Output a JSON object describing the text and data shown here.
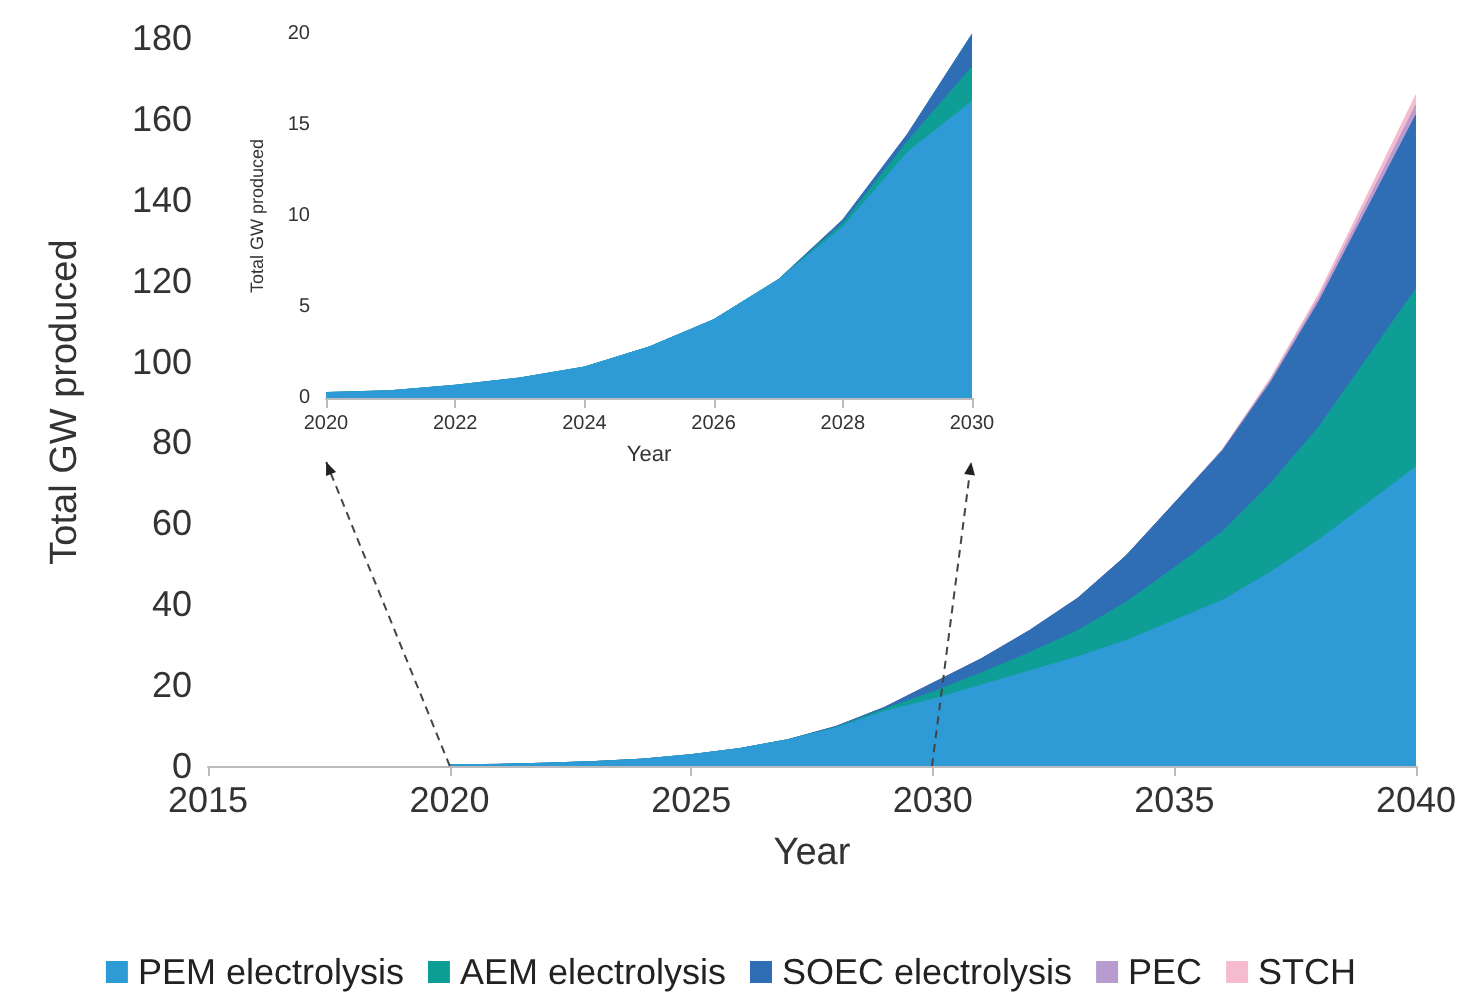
{
  "chart_data": [
    {
      "type": "area",
      "xlabel": "Year",
      "ylabel": "Total GW produced",
      "stacked": true,
      "marker": "none",
      "legend": "bottom",
      "x": [
        2020,
        2021,
        2022,
        2023,
        2024,
        2025,
        2026,
        2027,
        2028,
        2029,
        2030,
        2031,
        2032,
        2033,
        2034,
        2035,
        2036,
        2037,
        2038,
        2039,
        2040
      ],
      "xlim": [
        2015,
        2040
      ],
      "xticks": [
        2015,
        2020,
        2025,
        2030,
        2035,
        2040
      ],
      "ylim": [
        0,
        180
      ],
      "yticks": [
        0,
        20,
        40,
        60,
        80,
        100,
        120,
        140,
        160,
        180
      ],
      "series": [
        {
          "name": "PEM electrolysis",
          "color": "#2e9bd6",
          "values": [
            0.3,
            0.4,
            0.7,
            1.1,
            1.7,
            2.8,
            4.3,
            6.5,
            9.4,
            13.5,
            16.5,
            20,
            23.5,
            27,
            31,
            36,
            41,
            48,
            56,
            65,
            74
          ]
        },
        {
          "name": "AEM electrolysis",
          "color": "#0f9e96",
          "values": [
            0,
            0,
            0,
            0,
            0,
            0,
            0,
            0,
            0.2,
            0.6,
            1.8,
            3,
            4.5,
            6.5,
            9.5,
            13,
            17,
            22,
            28,
            36,
            44
          ]
        },
        {
          "name": "SOEC electrolysis",
          "color": "#2f6db5",
          "values": [
            0,
            0,
            0,
            0,
            0,
            0,
            0,
            0,
            0.2,
            0.4,
            2.2,
            3.5,
            5.5,
            8,
            11.5,
            16,
            20,
            25,
            31,
            37,
            43
          ]
        },
        {
          "name": "PEC",
          "color": "#b89ccf",
          "values": [
            0,
            0,
            0,
            0,
            0,
            0,
            0,
            0,
            0,
            0,
            0,
            0,
            0,
            0,
            0,
            0,
            0.3,
            0.6,
            1,
            1.7,
            2.5
          ]
        },
        {
          "name": "STCH",
          "color": "#f5bcd0",
          "values": [
            0,
            0,
            0,
            0,
            0,
            0,
            0,
            0,
            0,
            0,
            0,
            0,
            0,
            0,
            0,
            0,
            0,
            0.5,
            1,
            1.7,
            2.5
          ]
        }
      ]
    },
    {
      "type": "area",
      "xlabel": "Year",
      "ylabel": "Total GW produced",
      "stacked": true,
      "marker": "none",
      "x": [
        2020,
        2021,
        2022,
        2023,
        2024,
        2025,
        2026,
        2027,
        2028,
        2029,
        2030
      ],
      "xlim": [
        2020,
        2030
      ],
      "xticks": [
        2020,
        2022,
        2024,
        2026,
        2028,
        2030
      ],
      "ylim": [
        0,
        20
      ],
      "yticks": [
        0,
        5,
        10,
        15,
        20
      ],
      "series": [
        {
          "color": "#2e9bd6",
          "values": [
            0.3,
            0.4,
            0.7,
            1.1,
            1.7,
            2.8,
            4.3,
            6.5,
            9.4,
            13.5,
            16.3
          ]
        },
        {
          "color": "#0f9e96",
          "values": [
            0,
            0,
            0,
            0,
            0,
            0,
            0,
            0,
            0.2,
            0.6,
            1.9
          ]
        },
        {
          "color": "#2f6db5",
          "values": [
            0,
            0,
            0,
            0,
            0,
            0,
            0,
            0,
            0.2,
            0.4,
            1.8
          ]
        }
      ]
    }
  ]
}
